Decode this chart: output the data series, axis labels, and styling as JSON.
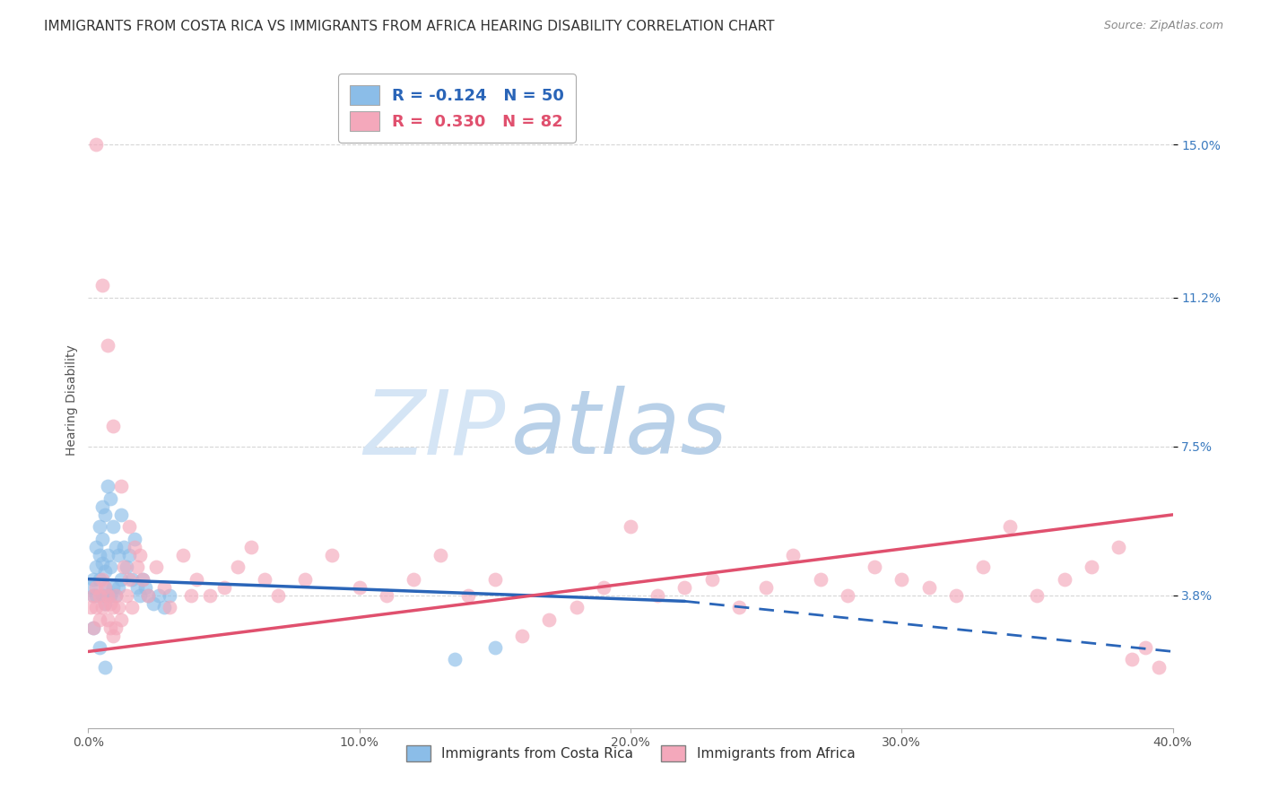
{
  "title": "IMMIGRANTS FROM COSTA RICA VS IMMIGRANTS FROM AFRICA HEARING DISABILITY CORRELATION CHART",
  "source": "Source: ZipAtlas.com",
  "ylabel": "Hearing Disability",
  "yticks": [
    0.038,
    0.075,
    0.112,
    0.15
  ],
  "ytick_labels": [
    "3.8%",
    "7.5%",
    "11.2%",
    "15.0%"
  ],
  "xlim": [
    0.0,
    0.4
  ],
  "ylim": [
    0.005,
    0.168
  ],
  "legend_blue_label": "Immigrants from Costa Rica",
  "legend_pink_label": "Immigrants from Africa",
  "blue_color": "#8bbde8",
  "pink_color": "#f4a8bb",
  "trend_blue_color": "#2a65b8",
  "trend_pink_color": "#e0506e",
  "watermark_zip": "ZIP",
  "watermark_atlas": "atlas",
  "watermark_color_zip": "#d5e5f5",
  "watermark_color_atlas": "#b8d0e8",
  "background_color": "#ffffff",
  "title_fontsize": 11,
  "axis_label_fontsize": 10,
  "tick_fontsize": 10,
  "r_blue": "-0.124",
  "n_blue": "50",
  "r_pink": "0.330",
  "n_pink": "82",
  "blue_x": [
    0.001,
    0.002,
    0.002,
    0.003,
    0.003,
    0.003,
    0.004,
    0.004,
    0.004,
    0.005,
    0.005,
    0.005,
    0.005,
    0.006,
    0.006,
    0.006,
    0.006,
    0.007,
    0.007,
    0.007,
    0.008,
    0.008,
    0.008,
    0.009,
    0.009,
    0.01,
    0.01,
    0.011,
    0.011,
    0.012,
    0.012,
    0.013,
    0.014,
    0.015,
    0.016,
    0.017,
    0.018,
    0.019,
    0.02,
    0.021,
    0.022,
    0.024,
    0.026,
    0.028,
    0.03,
    0.002,
    0.004,
    0.006,
    0.15,
    0.135
  ],
  "blue_y": [
    0.04,
    0.042,
    0.038,
    0.045,
    0.05,
    0.038,
    0.048,
    0.055,
    0.042,
    0.052,
    0.06,
    0.046,
    0.038,
    0.058,
    0.044,
    0.04,
    0.036,
    0.065,
    0.048,
    0.038,
    0.062,
    0.045,
    0.038,
    0.055,
    0.04,
    0.05,
    0.038,
    0.048,
    0.04,
    0.058,
    0.042,
    0.05,
    0.045,
    0.048,
    0.042,
    0.052,
    0.04,
    0.038,
    0.042,
    0.04,
    0.038,
    0.036,
    0.038,
    0.035,
    0.038,
    0.03,
    0.025,
    0.02,
    0.025,
    0.022
  ],
  "pink_x": [
    0.001,
    0.002,
    0.002,
    0.003,
    0.003,
    0.004,
    0.004,
    0.005,
    0.005,
    0.006,
    0.006,
    0.007,
    0.007,
    0.008,
    0.008,
    0.009,
    0.009,
    0.01,
    0.01,
    0.011,
    0.012,
    0.013,
    0.014,
    0.015,
    0.016,
    0.017,
    0.018,
    0.019,
    0.02,
    0.022,
    0.025,
    0.028,
    0.03,
    0.035,
    0.038,
    0.04,
    0.045,
    0.05,
    0.055,
    0.06,
    0.065,
    0.07,
    0.08,
    0.09,
    0.1,
    0.11,
    0.12,
    0.13,
    0.14,
    0.15,
    0.16,
    0.17,
    0.18,
    0.19,
    0.2,
    0.21,
    0.22,
    0.23,
    0.24,
    0.25,
    0.26,
    0.27,
    0.28,
    0.29,
    0.3,
    0.31,
    0.32,
    0.33,
    0.34,
    0.35,
    0.36,
    0.37,
    0.38,
    0.39,
    0.003,
    0.005,
    0.007,
    0.009,
    0.012,
    0.015,
    0.395,
    0.385
  ],
  "pink_y": [
    0.035,
    0.038,
    0.03,
    0.04,
    0.035,
    0.038,
    0.032,
    0.042,
    0.035,
    0.04,
    0.036,
    0.038,
    0.032,
    0.036,
    0.03,
    0.035,
    0.028,
    0.038,
    0.03,
    0.035,
    0.032,
    0.045,
    0.038,
    0.042,
    0.035,
    0.05,
    0.045,
    0.048,
    0.042,
    0.038,
    0.045,
    0.04,
    0.035,
    0.048,
    0.038,
    0.042,
    0.038,
    0.04,
    0.045,
    0.05,
    0.042,
    0.038,
    0.042,
    0.048,
    0.04,
    0.038,
    0.042,
    0.048,
    0.038,
    0.042,
    0.028,
    0.032,
    0.035,
    0.04,
    0.055,
    0.038,
    0.04,
    0.042,
    0.035,
    0.04,
    0.048,
    0.042,
    0.038,
    0.045,
    0.042,
    0.04,
    0.038,
    0.045,
    0.055,
    0.038,
    0.042,
    0.045,
    0.05,
    0.025,
    0.15,
    0.115,
    0.1,
    0.08,
    0.065,
    0.055,
    0.02,
    0.022
  ]
}
